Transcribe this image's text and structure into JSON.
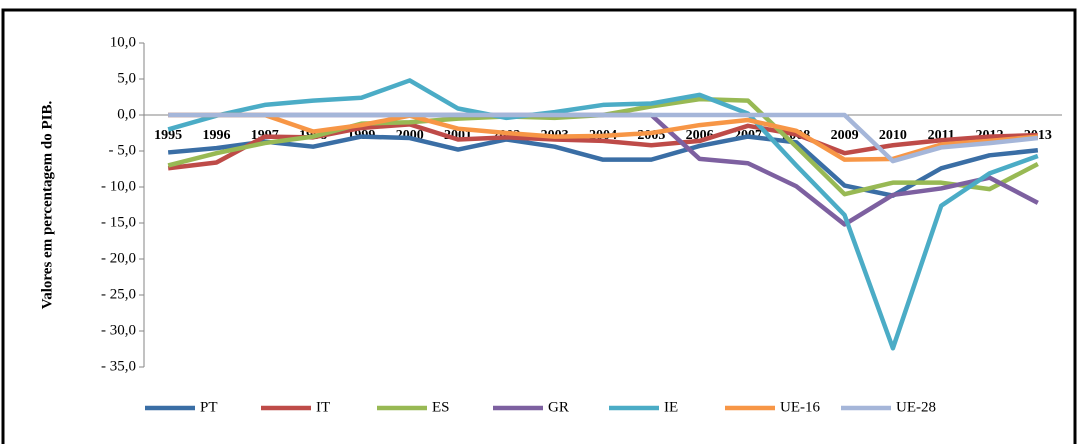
{
  "chart_data": {
    "type": "line",
    "y_label": "Valores em percentagem do PIB.",
    "categories": [
      "1995",
      "1996",
      "1997",
      "1998",
      "1999",
      "2000",
      "2001",
      "2002",
      "2003",
      "2004",
      "2005",
      "2006",
      "2007",
      "2008",
      "2009",
      "2010",
      "2011",
      "2012",
      "2013"
    ],
    "ylim": [
      -35,
      10
    ],
    "yticks": [
      {
        "value": 10,
        "label": "10,0"
      },
      {
        "value": 5,
        "label": "5,0"
      },
      {
        "value": 0,
        "label": "0,0"
      },
      {
        "value": -5,
        "label": "- 5,0"
      },
      {
        "value": -10,
        "label": "- 10,0"
      },
      {
        "value": -15,
        "label": "- 15,0"
      },
      {
        "value": -20,
        "label": "- 20,0"
      },
      {
        "value": -25,
        "label": "- 25,0"
      },
      {
        "value": -30,
        "label": "- 30,0"
      },
      {
        "value": -35,
        "label": "- 35,0"
      }
    ],
    "legend": "bottom",
    "series": [
      {
        "name": "PT",
        "color": "#3a6ea5",
        "values": [
          -5.2,
          -4.6,
          -3.7,
          -4.4,
          -3.0,
          -3.2,
          -4.8,
          -3.4,
          -4.4,
          -6.2,
          -6.2,
          -4.3,
          -3.0,
          -3.8,
          -9.8,
          -11.2,
          -7.4,
          -5.6,
          -4.9
        ]
      },
      {
        "name": "IT",
        "color": "#be4b48",
        "values": [
          -7.4,
          -6.6,
          -3.0,
          -3.1,
          -1.8,
          -1.3,
          -3.4,
          -3.1,
          -3.4,
          -3.6,
          -4.2,
          -3.6,
          -1.5,
          -2.7,
          -5.3,
          -4.2,
          -3.5,
          -3.0,
          -2.8
        ]
      },
      {
        "name": "ES",
        "color": "#98b954",
        "values": [
          -7.0,
          -5.3,
          -3.9,
          -3.0,
          -1.2,
          -1.0,
          -0.5,
          -0.2,
          -0.4,
          0.0,
          1.2,
          2.2,
          2.0,
          -4.4,
          -11.0,
          -9.4,
          -9.4,
          -10.3,
          -6.8
        ]
      },
      {
        "name": "GR",
        "color": "#7d60a0",
        "values": [
          0,
          0,
          0,
          0,
          0,
          0,
          0,
          0,
          0,
          0,
          0,
          -6.1,
          -6.7,
          -9.9,
          -15.2,
          -11.1,
          -10.2,
          -8.7,
          -12.2
        ]
      },
      {
        "name": "IE",
        "color": "#4bacc6",
        "values": [
          -2.0,
          -0.1,
          1.4,
          2.0,
          2.4,
          4.8,
          0.9,
          -0.4,
          0.4,
          1.4,
          1.6,
          2.8,
          0.2,
          -7.0,
          -13.9,
          -32.4,
          -12.6,
          -8.1,
          -5.7
        ]
      },
      {
        "name": "UE-16",
        "color": "#f79646",
        "values": [
          0,
          0,
          0,
          -2.3,
          -1.4,
          -0.1,
          -1.9,
          -2.5,
          -3.0,
          -2.9,
          -2.5,
          -1.4,
          -0.7,
          -2.2,
          -6.2,
          -6.1,
          -4.1,
          -3.6,
          -3.0
        ]
      },
      {
        "name": "UE-28",
        "color": "#a5b6d9",
        "values": [
          0,
          0,
          0,
          0,
          0,
          0,
          0,
          0,
          0,
          0,
          0,
          0,
          0,
          0,
          0,
          -6.4,
          -4.5,
          -3.9,
          -3.2
        ]
      }
    ]
  }
}
